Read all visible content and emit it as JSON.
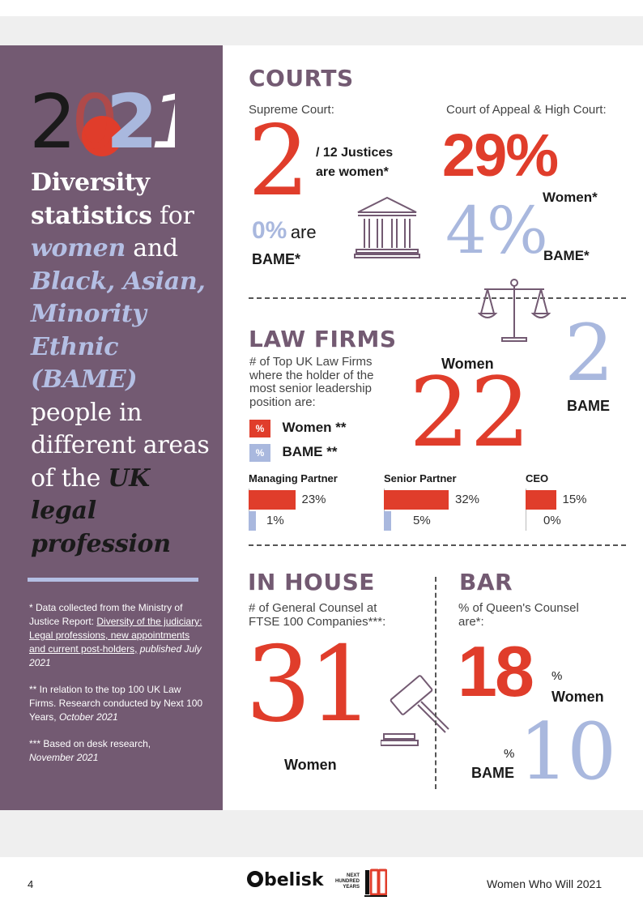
{
  "sidebar": {
    "year": "2021",
    "headline": {
      "p1": "Diversity",
      "p2": "statistics",
      "p3": "for",
      "p4": "women",
      "p5": "and",
      "p6": "Black, Asian, Minority Ethnic (BAME)",
      "p7": "people in different areas of the",
      "p8": "UK legal profession"
    },
    "notes": {
      "n1a": "* Data collected from the Ministry of Justice Report:",
      "n1b": "Diversity of the judiciary: Legal professions, new appointments and current post-holders,",
      "n1c": "published July 2021",
      "n2a": "** In relation to the top 100 UK Law Firms. Research conducted by Next 100 Years,",
      "n2b": "October 2021",
      "n3a": "*** Based on desk research,",
      "n3b": "November 2021"
    }
  },
  "courts": {
    "title": "COURTS",
    "supreme_label": "Supreme Court:",
    "supreme_number": "2",
    "supreme_text": "/ 12 Justices are women*",
    "supreme_bame_value": "0%",
    "supreme_bame_text1": "are",
    "supreme_bame_text2": "BAME*",
    "appeal_label": "Court of Appeal & High Court:",
    "appeal_women_value": "29%",
    "appeal_women_label": "Women*",
    "appeal_bame_value": "4%",
    "appeal_bame_label": "BAME*"
  },
  "law_firms": {
    "title": "LAW FIRMS",
    "description": "# of Top UK Law Firms where the holder of the most senior leadership position are:",
    "legend_symbol": "%",
    "legend_women": "Women **",
    "legend_bame": "BAME **",
    "women_label": "Women",
    "women_value": "22",
    "bame_value": "2",
    "bame_label": "BAME",
    "bars": [
      {
        "title": "Managing Partner",
        "women_pct": 23,
        "women_label": "23%",
        "bame_pct": 1,
        "bame_label": "1%"
      },
      {
        "title": "Senior Partner",
        "women_pct": 32,
        "women_label": "32%",
        "bame_pct": 5,
        "bame_label": "5%"
      },
      {
        "title": "CEO",
        "women_pct": 15,
        "women_label": "15%",
        "bame_pct": 0,
        "bame_label": "0%"
      }
    ]
  },
  "in_house": {
    "title": "IN HOUSE",
    "description": "# of General Counsel at FTSE 100 Companies***:",
    "value": "31",
    "label": "Women"
  },
  "bar": {
    "title": "BAR",
    "description": "% of Queen's Counsel are*:",
    "women_value": "18",
    "women_pct": "%",
    "women_label": "Women",
    "bame_pct": "%",
    "bame_label": "BAME",
    "bame_value": "10"
  },
  "footer": {
    "page_number": "4",
    "brand": "belisk",
    "partner_line1": "NEXT",
    "partner_line2": "HUNDRED",
    "partner_line3": "YEARS",
    "publication": "Women Who Will 2021"
  },
  "colors": {
    "purple": "#735a72",
    "red": "#e03d2b",
    "light_blue": "#a9b8de"
  },
  "icons": [
    "courthouse-icon",
    "scales-icon",
    "gavel-icon"
  ]
}
